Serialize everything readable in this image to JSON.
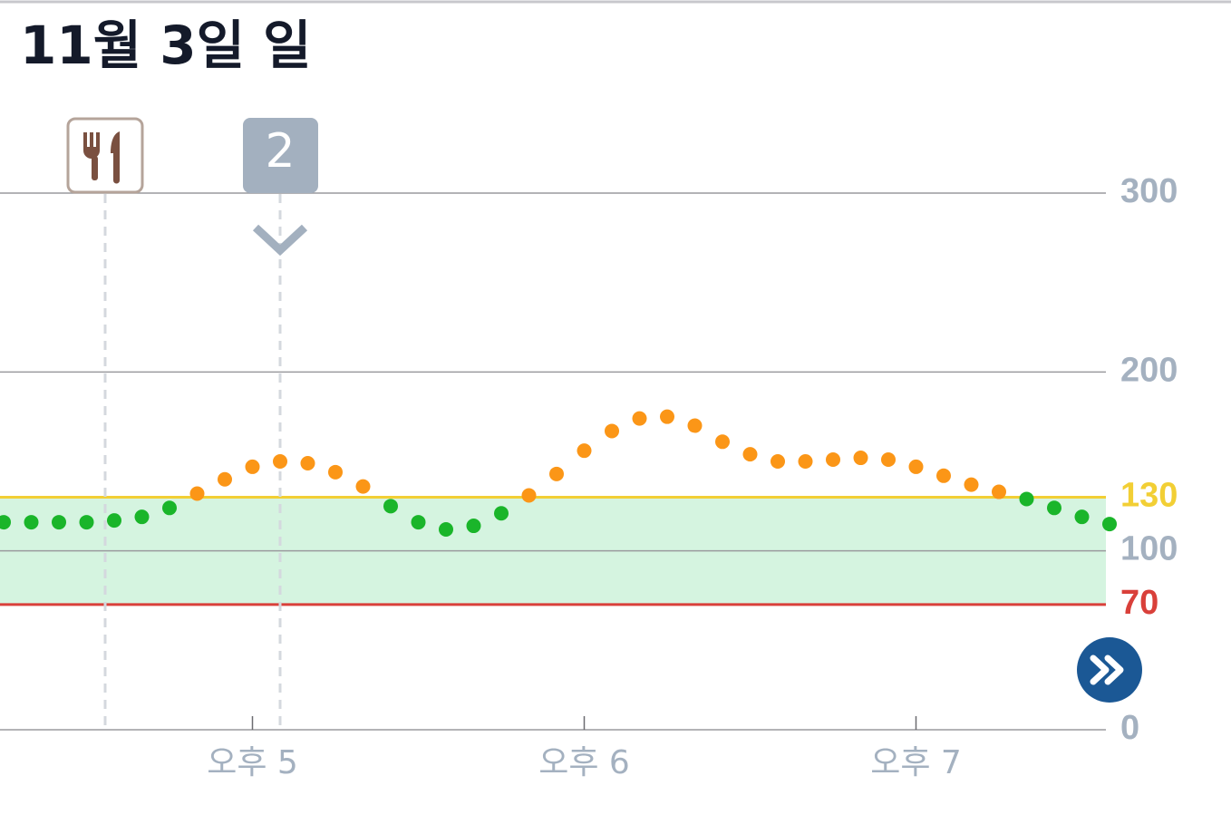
{
  "chart_data": {
    "type": "scatter",
    "title": "11월 3일 일",
    "categories": [
      null,
      null,
      null,
      null,
      null,
      null,
      null,
      null,
      null,
      "오후 5",
      null,
      null,
      null,
      null,
      null,
      null,
      null,
      null,
      null,
      null,
      null,
      "오후 6",
      null,
      null,
      null,
      null,
      null,
      null,
      null,
      null,
      null,
      null,
      null,
      "오후 7",
      null,
      null,
      null,
      null,
      null,
      null,
      null
    ],
    "values": [
      116,
      116,
      116,
      116,
      117,
      119,
      124,
      132,
      140,
      147,
      150,
      149,
      144,
      136,
      125,
      116,
      112,
      114,
      121,
      131,
      143,
      156,
      167,
      174,
      175,
      170,
      161,
      154,
      150,
      150,
      151,
      152,
      151,
      147,
      142,
      137,
      133,
      129,
      124,
      119,
      115
    ],
    "ylim": [
      0,
      300
    ],
    "yticks": [
      0,
      100,
      200,
      300
    ],
    "grid": true,
    "target_low": 70,
    "target_high": 130,
    "low_color": "#d9403a",
    "high_color": "#f2cf35",
    "range_fill": "#d5f4e0",
    "normal_color": "#1ab52a",
    "above_color": "#fb9617",
    "annotations": [
      {
        "label": "2"
      }
    ]
  }
}
